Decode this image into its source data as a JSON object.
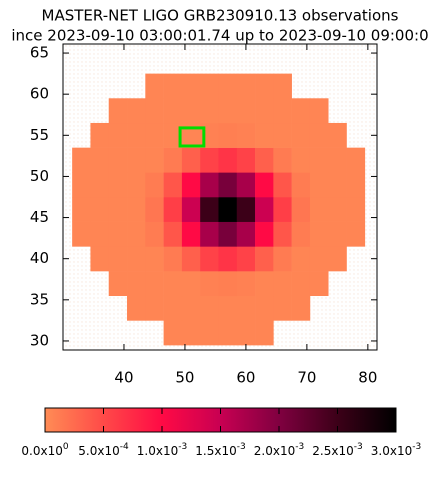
{
  "chart_data": {
    "type": "heatmap",
    "title": "MASTER-NET LIGO GRB230910.13 observations",
    "subtitle": "ince 2023-09-10 03:00:01.74 up to 2023-09-10 09:00:0",
    "x": [
      33,
      36,
      39,
      42,
      45,
      48,
      51,
      54,
      57,
      60,
      63,
      66,
      69,
      72,
      75,
      78
    ],
    "y": [
      31,
      34,
      37,
      40,
      43,
      46,
      49,
      52,
      55,
      58,
      61
    ],
    "cell": 3,
    "z": [
      [
        null,
        null,
        null,
        null,
        null,
        5e-05,
        5e-05,
        5e-05,
        5e-05,
        5e-05,
        5e-05,
        null,
        null,
        null,
        null,
        null
      ],
      [
        null,
        null,
        null,
        5e-05,
        5e-05,
        5e-05,
        5e-05,
        5e-05,
        5e-05,
        5e-05,
        5e-05,
        5e-05,
        5e-05,
        null,
        null,
        null
      ],
      [
        null,
        null,
        5e-05,
        5e-05,
        5e-05,
        5e-05,
        5e-05,
        8e-05,
        0.0001,
        8e-05,
        5e-05,
        5e-05,
        5e-05,
        5e-05,
        null,
        null
      ],
      [
        null,
        5e-05,
        5e-05,
        5e-05,
        5e-05,
        0.00013,
        0.00033,
        0.00056,
        0.00067,
        0.00056,
        0.00033,
        0.00013,
        5e-05,
        5e-05,
        5e-05,
        null
      ],
      [
        5e-05,
        5e-05,
        5e-05,
        5e-05,
        0.00012,
        0.00041,
        0.001,
        0.00172,
        0.00206,
        0.00172,
        0.001,
        0.00041,
        0.00012,
        5e-05,
        5e-05,
        5e-05
      ],
      [
        5e-05,
        5e-05,
        5e-05,
        5e-05,
        0.00017,
        0.00059,
        0.00146,
        0.0025,
        0.003,
        0.0025,
        0.00146,
        0.00059,
        0.00017,
        5e-05,
        5e-05,
        5e-05
      ],
      [
        5e-05,
        5e-05,
        5e-05,
        5e-05,
        0.00012,
        0.00041,
        0.001,
        0.00172,
        0.00206,
        0.00172,
        0.001,
        0.00041,
        0.00012,
        5e-05,
        5e-05,
        5e-05
      ],
      [
        5e-05,
        5e-05,
        5e-05,
        5e-05,
        5e-05,
        0.00013,
        0.00033,
        0.00056,
        0.00067,
        0.00056,
        0.00033,
        0.00013,
        5e-05,
        5e-05,
        5e-05,
        5e-05
      ],
      [
        null,
        5e-05,
        5e-05,
        5e-05,
        5e-05,
        5e-05,
        5e-05,
        8e-05,
        0.0001,
        8e-05,
        5e-05,
        5e-05,
        5e-05,
        5e-05,
        5e-05,
        null
      ],
      [
        null,
        null,
        5e-05,
        5e-05,
        5e-05,
        5e-05,
        5e-05,
        5e-05,
        5e-05,
        5e-05,
        5e-05,
        5e-05,
        5e-05,
        5e-05,
        null,
        null
      ],
      [
        null,
        null,
        null,
        null,
        5e-05,
        5e-05,
        5e-05,
        5e-05,
        5e-05,
        5e-05,
        5e-05,
        5e-05,
        null,
        null,
        null,
        null
      ]
    ],
    "xlim": [
      30,
      81.5
    ],
    "ylim": [
      28.9,
      66.1
    ],
    "xticks": [
      40,
      50,
      60,
      70,
      80
    ],
    "yticks": [
      30,
      35,
      40,
      45,
      50,
      55,
      60,
      65
    ],
    "box": {
      "x": [
        49.2,
        53.1
      ],
      "y": [
        53.7,
        55.9
      ],
      "color": "#00dd00"
    },
    "colorbar": {
      "clim": [
        0,
        0.003
      ],
      "colormap": [
        {
          "value": 0,
          "color": "#ff8c55"
        },
        {
          "value": 0.0005,
          "color": "#ff4a48"
        },
        {
          "value": 0.001,
          "color": "#ff0a45"
        },
        {
          "value": 0.0015,
          "color": "#c80052"
        },
        {
          "value": 0.002,
          "color": "#800040"
        },
        {
          "value": 0.0025,
          "color": "#3c0018"
        },
        {
          "value": 0.003,
          "color": "#000000"
        }
      ],
      "ticks": [
        {
          "value": 0,
          "label": "0.0x10",
          "exponent": "0"
        },
        {
          "value": 0.0005,
          "label": "5.0x10",
          "exponent": "-4"
        },
        {
          "value": 0.001,
          "label": "1.0x10",
          "exponent": "-3"
        },
        {
          "value": 0.0015,
          "label": "1.5x10",
          "exponent": "-3"
        },
        {
          "value": 0.002,
          "label": "2.0x10",
          "exponent": "-3"
        },
        {
          "value": 0.0025,
          "label": "2.5x10",
          "exponent": "-3"
        },
        {
          "value": 0.003,
          "label": "3.0x10",
          "exponent": "-3"
        }
      ]
    }
  }
}
